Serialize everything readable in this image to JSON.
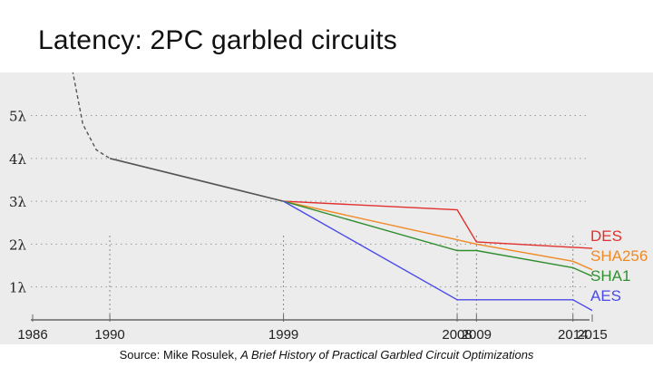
{
  "title": "Latency: 2PC garbled circuits",
  "source": {
    "prefix": "Source: Mike Rosulek, ",
    "work": "A Brief History of Practical Garbled Circuit Optimizations"
  },
  "chart_data": {
    "type": "line",
    "title": "",
    "xlabel": "",
    "ylabel": "",
    "xlim": [
      1986,
      2015
    ],
    "ylim": [
      0.4,
      5.9
    ],
    "x_ticks": [
      1986,
      1990,
      1999,
      2008,
      2009,
      2014,
      2015
    ],
    "y_ticks": [
      {
        "value": 1,
        "label": "1λ"
      },
      {
        "value": 2,
        "label": "2λ"
      },
      {
        "value": 3,
        "label": "3λ"
      },
      {
        "value": 4,
        "label": "4λ"
      },
      {
        "value": 5,
        "label": "5λ"
      }
    ],
    "grid": "horizontal-dotted",
    "legend": "right",
    "common": {
      "name": "",
      "color": "#555555",
      "pre_dashed": [
        {
          "x": 1988,
          "y": 6.2
        },
        {
          "x": 1988.6,
          "y": 4.8
        },
        {
          "x": 1989.3,
          "y": 4.2
        },
        {
          "x": 1990,
          "y": 4.0
        }
      ],
      "points": [
        {
          "x": 1990,
          "y": 4.0
        },
        {
          "x": 1999,
          "y": 3.0
        }
      ]
    },
    "series": [
      {
        "name": "DES",
        "color": "#e0312f",
        "points": [
          {
            "x": 1999,
            "y": 3.0
          },
          {
            "x": 2008,
            "y": 2.8
          },
          {
            "x": 2009,
            "y": 2.05
          },
          {
            "x": 2015,
            "y": 1.9
          }
        ]
      },
      {
        "name": "SHA256",
        "color": "#f08a24",
        "points": [
          {
            "x": 1999,
            "y": 3.0
          },
          {
            "x": 2008,
            "y": 2.1
          },
          {
            "x": 2009,
            "y": 2.0
          },
          {
            "x": 2014,
            "y": 1.6
          },
          {
            "x": 2015,
            "y": 1.4
          }
        ]
      },
      {
        "name": "SHA1",
        "color": "#2f8f2f",
        "points": [
          {
            "x": 1999,
            "y": 3.0
          },
          {
            "x": 2008,
            "y": 1.85
          },
          {
            "x": 2009,
            "y": 1.85
          },
          {
            "x": 2014,
            "y": 1.45
          },
          {
            "x": 2015,
            "y": 1.25
          }
        ]
      },
      {
        "name": "AES",
        "color": "#4a4ae8",
        "points": [
          {
            "x": 1999,
            "y": 3.0
          },
          {
            "x": 2008,
            "y": 0.7
          },
          {
            "x": 2014,
            "y": 0.7
          },
          {
            "x": 2015,
            "y": 0.45
          }
        ]
      }
    ]
  }
}
